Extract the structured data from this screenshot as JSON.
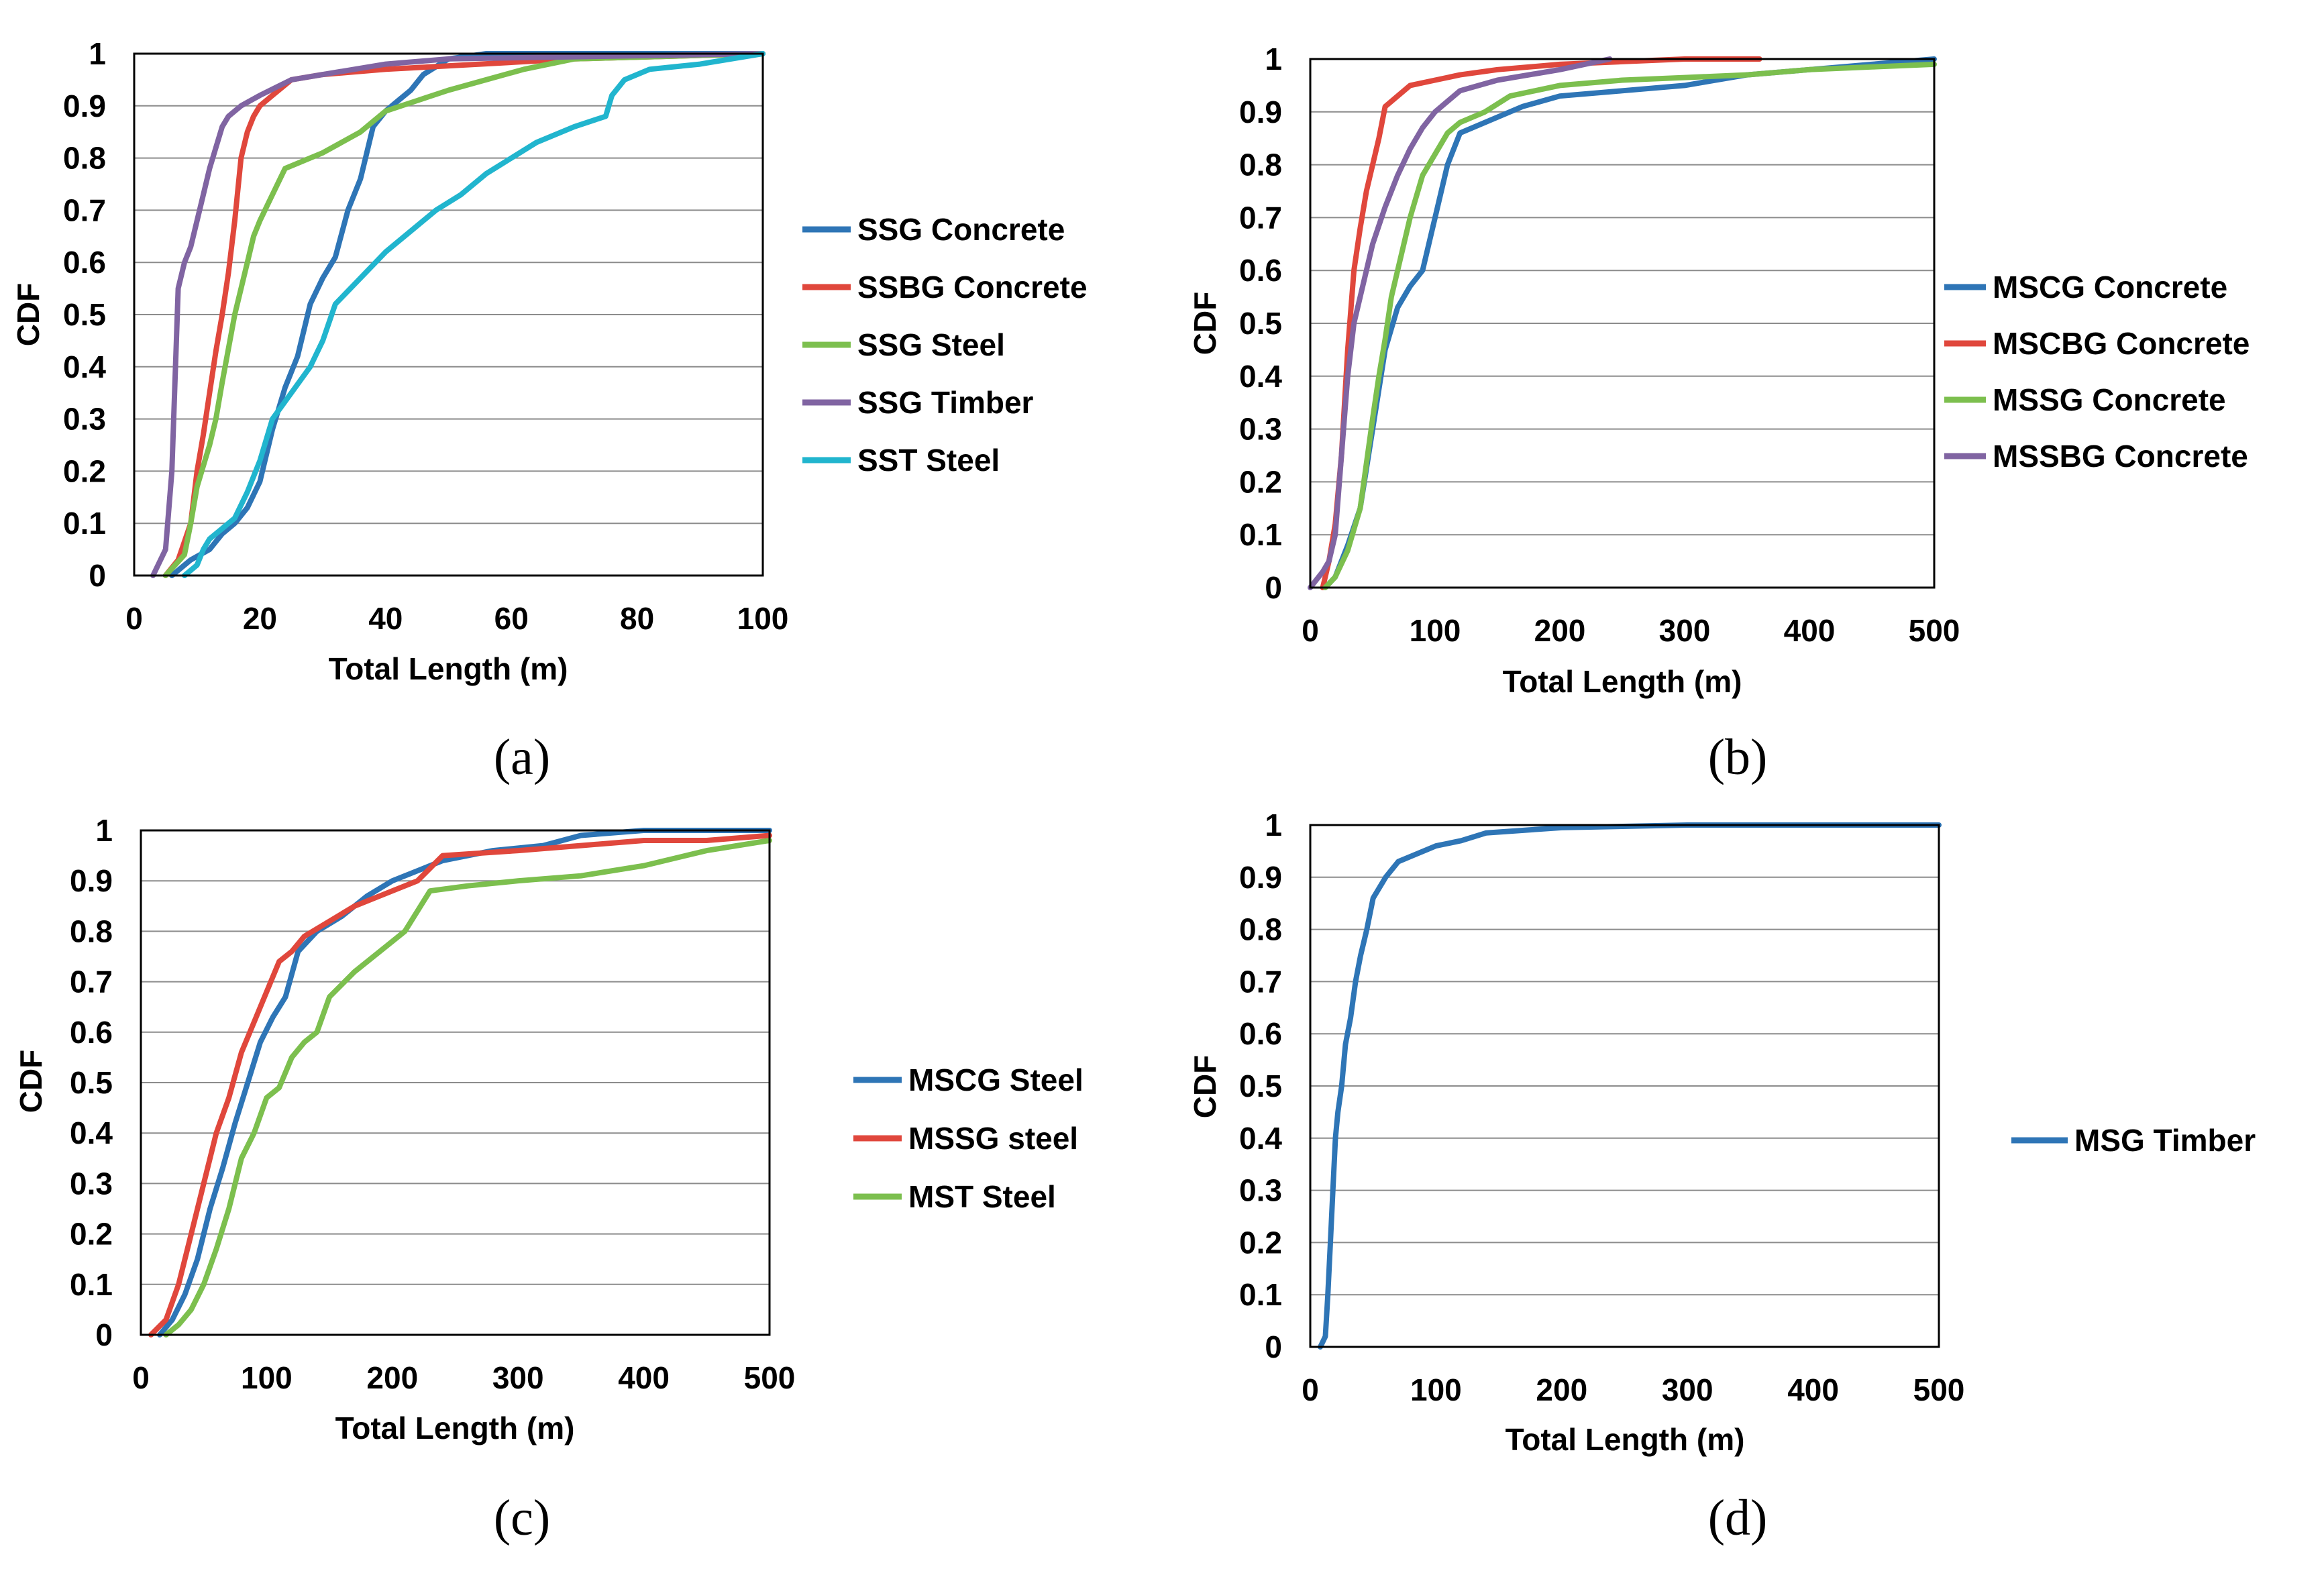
{
  "figure": {
    "panels": [
      {
        "id": "a",
        "panel_label": "(a)",
        "chart_data": {
          "type": "line",
          "title": "",
          "xlabel": "Total Length (m)",
          "ylabel": "CDF",
          "xlim": [
            0,
            100
          ],
          "ylim": [
            0,
            1
          ],
          "xticks": [
            0,
            20,
            40,
            60,
            80,
            100
          ],
          "yticks": [
            0,
            0.1,
            0.2,
            0.3,
            0.4,
            0.5,
            0.6,
            0.7,
            0.8,
            0.9,
            1
          ],
          "grid": "horizontal",
          "legend_position": "right",
          "series": [
            {
              "name": "SSG Concrete",
              "color": "#2E75B6",
              "x": [
                6,
                9,
                12,
                14,
                16,
                18,
                20,
                22,
                24,
                26,
                28,
                30,
                32,
                34,
                36,
                38,
                40,
                42,
                44,
                46,
                50,
                56,
                62,
                70,
                100
              ],
              "y": [
                0,
                0.03,
                0.05,
                0.08,
                0.1,
                0.13,
                0.18,
                0.28,
                0.36,
                0.42,
                0.52,
                0.57,
                0.61,
                0.7,
                0.76,
                0.86,
                0.89,
                0.91,
                0.93,
                0.96,
                0.99,
                1,
                1,
                1,
                1
              ]
            },
            {
              "name": "SSBG Concrete",
              "color": "#E0473C",
              "x": [
                5,
                7,
                9,
                10,
                11,
                12,
                13,
                14,
                15,
                16,
                17,
                18,
                19,
                20,
                22,
                25,
                30,
                40,
                55,
                70,
                100
              ],
              "y": [
                0,
                0.03,
                0.1,
                0.2,
                0.27,
                0.35,
                0.43,
                0.5,
                0.58,
                0.68,
                0.8,
                0.85,
                0.88,
                0.9,
                0.92,
                0.95,
                0.96,
                0.97,
                0.98,
                0.99,
                1
              ]
            },
            {
              "name": "SSG Steel",
              "color": "#7CBF4E",
              "x": [
                5,
                8,
                9,
                10,
                12,
                13,
                14,
                16,
                18,
                19,
                20,
                22,
                24,
                26,
                28,
                30,
                33,
                36,
                38,
                40,
                45,
                50,
                56,
                62,
                70,
                100
              ],
              "y": [
                0,
                0.04,
                0.1,
                0.17,
                0.25,
                0.3,
                0.37,
                0.5,
                0.6,
                0.65,
                0.68,
                0.73,
                0.78,
                0.79,
                0.8,
                0.81,
                0.83,
                0.85,
                0.87,
                0.89,
                0.91,
                0.93,
                0.95,
                0.97,
                0.99,
                1
              ]
            },
            {
              "name": "SSG Timber",
              "color": "#8064A2",
              "x": [
                3,
                5,
                6,
                7,
                8,
                9,
                10,
                11,
                12,
                13,
                14,
                15,
                17,
                20,
                25,
                30,
                40,
                50,
                100
              ],
              "y": [
                0,
                0.05,
                0.2,
                0.55,
                0.6,
                0.63,
                0.68,
                0.73,
                0.78,
                0.82,
                0.86,
                0.88,
                0.9,
                0.92,
                0.95,
                0.96,
                0.98,
                0.99,
                1
              ]
            },
            {
              "name": "SST Steel",
              "color": "#21B5CE",
              "x": [
                8,
                10,
                11,
                12,
                14,
                16,
                18,
                20,
                22,
                25,
                28,
                30,
                32,
                36,
                40,
                44,
                48,
                52,
                56,
                60,
                64,
                70,
                75,
                76,
                78,
                82,
                90,
                100
              ],
              "y": [
                0,
                0.02,
                0.05,
                0.07,
                0.09,
                0.11,
                0.16,
                0.22,
                0.3,
                0.35,
                0.4,
                0.45,
                0.52,
                0.57,
                0.62,
                0.66,
                0.7,
                0.73,
                0.77,
                0.8,
                0.83,
                0.86,
                0.88,
                0.92,
                0.95,
                0.97,
                0.98,
                1
              ]
            }
          ]
        }
      },
      {
        "id": "b",
        "panel_label": "(b)",
        "chart_data": {
          "type": "line",
          "title": "",
          "xlabel": "Total Length (m)",
          "ylabel": "CDF",
          "xlim": [
            0,
            500
          ],
          "ylim": [
            0,
            1
          ],
          "xticks": [
            0,
            100,
            200,
            300,
            400,
            500
          ],
          "yticks": [
            0,
            0.1,
            0.2,
            0.3,
            0.4,
            0.5,
            0.6,
            0.7,
            0.8,
            0.9,
            1
          ],
          "grid": "horizontal",
          "legend_position": "right",
          "series": [
            {
              "name": "MSCG Concrete",
              "color": "#2E75B6",
              "x": [
                12,
                20,
                30,
                40,
                50,
                60,
                70,
                80,
                90,
                100,
                110,
                120,
                140,
                170,
                200,
                250,
                300,
                350,
                400,
                450,
                500
              ],
              "y": [
                0,
                0.02,
                0.08,
                0.15,
                0.3,
                0.45,
                0.53,
                0.57,
                0.6,
                0.7,
                0.8,
                0.86,
                0.88,
                0.91,
                0.93,
                0.94,
                0.95,
                0.97,
                0.98,
                0.99,
                1
              ]
            },
            {
              "name": "MSCBG Concrete",
              "color": "#E0473C",
              "x": [
                10,
                15,
                20,
                25,
                30,
                35,
                40,
                45,
                50,
                55,
                60,
                70,
                80,
                100,
                120,
                150,
                200,
                250,
                300,
                360
              ],
              "y": [
                0,
                0.05,
                0.12,
                0.25,
                0.45,
                0.6,
                0.68,
                0.75,
                0.8,
                0.85,
                0.91,
                0.93,
                0.95,
                0.96,
                0.97,
                0.98,
                0.99,
                0.995,
                1,
                1
              ]
            },
            {
              "name": "MSSG Concrete",
              "color": "#7CBF4E",
              "x": [
                12,
                20,
                30,
                40,
                50,
                55,
                60,
                65,
                70,
                75,
                80,
                90,
                100,
                110,
                120,
                140,
                160,
                200,
                250,
                300,
                350,
                400,
                450,
                500
              ],
              "y": [
                0,
                0.02,
                0.07,
                0.15,
                0.32,
                0.4,
                0.47,
                0.55,
                0.6,
                0.65,
                0.7,
                0.78,
                0.82,
                0.86,
                0.88,
                0.9,
                0.93,
                0.95,
                0.96,
                0.965,
                0.97,
                0.98,
                0.985,
                0.99
              ]
            },
            {
              "name": "MSSBG Concrete",
              "color": "#8064A2",
              "x": [
                0,
                10,
                15,
                20,
                25,
                30,
                35,
                40,
                45,
                50,
                60,
                70,
                80,
                90,
                100,
                120,
                150,
                200,
                240
              ],
              "y": [
                0,
                0.03,
                0.05,
                0.1,
                0.25,
                0.4,
                0.5,
                0.55,
                0.6,
                0.65,
                0.72,
                0.78,
                0.83,
                0.87,
                0.9,
                0.94,
                0.96,
                0.98,
                1
              ]
            }
          ]
        }
      },
      {
        "id": "c",
        "panel_label": "(c)",
        "chart_data": {
          "type": "line",
          "title": "",
          "xlabel": "Total Length (m)",
          "ylabel": "CDF",
          "xlim": [
            0,
            500
          ],
          "ylim": [
            0,
            1
          ],
          "xticks": [
            0,
            100,
            200,
            300,
            400,
            500
          ],
          "yticks": [
            0,
            0.1,
            0.2,
            0.3,
            0.4,
            0.5,
            0.6,
            0.7,
            0.8,
            0.9,
            1
          ],
          "grid": "horizontal",
          "legend_position": "right",
          "series": [
            {
              "name": "MSCG Steel",
              "color": "#2E75B6",
              "x": [
                15,
                25,
                35,
                45,
                55,
                65,
                75,
                85,
                95,
                105,
                115,
                125,
                140,
                160,
                180,
                200,
                220,
                240,
                280,
                320,
                350,
                400,
                450,
                500
              ],
              "y": [
                0,
                0.03,
                0.08,
                0.15,
                0.25,
                0.33,
                0.42,
                0.5,
                0.58,
                0.63,
                0.67,
                0.76,
                0.8,
                0.83,
                0.87,
                0.9,
                0.92,
                0.94,
                0.96,
                0.97,
                0.99,
                1,
                1,
                1
              ]
            },
            {
              "name": "MSSG steel",
              "color": "#E0473C",
              "x": [
                8,
                20,
                30,
                40,
                50,
                60,
                70,
                80,
                90,
                100,
                110,
                120,
                130,
                150,
                170,
                200,
                220,
                240,
                300,
                350,
                400,
                450,
                500
              ],
              "y": [
                0,
                0.03,
                0.1,
                0.2,
                0.3,
                0.4,
                0.47,
                0.56,
                0.62,
                0.68,
                0.74,
                0.76,
                0.79,
                0.82,
                0.85,
                0.88,
                0.9,
                0.95,
                0.96,
                0.97,
                0.98,
                0.98,
                0.99
              ]
            },
            {
              "name": "MST Steel",
              "color": "#7CBF4E",
              "x": [
                20,
                30,
                40,
                50,
                60,
                70,
                80,
                90,
                100,
                110,
                120,
                130,
                140,
                150,
                170,
                190,
                210,
                230,
                260,
                300,
                350,
                400,
                450,
                500
              ],
              "y": [
                0,
                0.02,
                0.05,
                0.1,
                0.17,
                0.25,
                0.35,
                0.4,
                0.47,
                0.49,
                0.55,
                0.58,
                0.6,
                0.67,
                0.72,
                0.76,
                0.8,
                0.88,
                0.89,
                0.9,
                0.91,
                0.93,
                0.96,
                0.98
              ]
            }
          ]
        }
      },
      {
        "id": "d",
        "panel_label": "(d)",
        "chart_data": {
          "type": "line",
          "title": "",
          "xlabel": "Total Length (m)",
          "ylabel": "CDF",
          "xlim": [
            0,
            500
          ],
          "ylim": [
            0,
            1
          ],
          "xticks": [
            0,
            100,
            200,
            300,
            400,
            500
          ],
          "yticks": [
            0,
            0.1,
            0.2,
            0.3,
            0.4,
            0.5,
            0.6,
            0.7,
            0.8,
            0.9,
            1
          ],
          "grid": "horizontal",
          "legend_position": "right",
          "series": [
            {
              "name": "MSG Timber",
              "color": "#2E75B6",
              "x": [
                8,
                12,
                14,
                16,
                18,
                20,
                22,
                25,
                28,
                32,
                36,
                40,
                45,
                50,
                60,
                70,
                80,
                100,
                120,
                140,
                200,
                300,
                400,
                500
              ],
              "y": [
                0,
                0.02,
                0.1,
                0.2,
                0.3,
                0.4,
                0.45,
                0.5,
                0.58,
                0.63,
                0.7,
                0.75,
                0.8,
                0.86,
                0.9,
                0.93,
                0.94,
                0.96,
                0.97,
                0.985,
                0.995,
                1,
                1,
                1
              ]
            }
          ]
        }
      }
    ]
  }
}
